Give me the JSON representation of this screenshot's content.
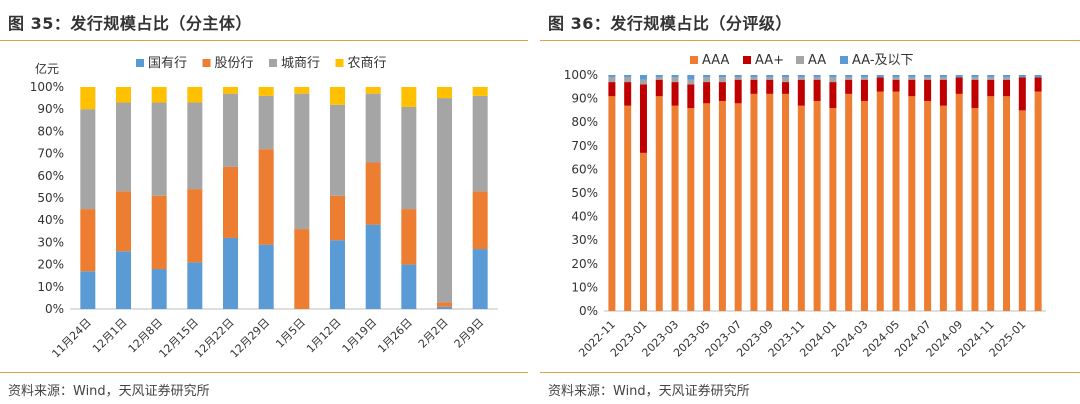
{
  "colors": {
    "guoyouhang": "#5b9bd5",
    "gufenhang": "#ed7d31",
    "chengshanghang": "#a5a5a5",
    "nongshanghang": "#ffc000",
    "AAA": "#ed7d31",
    "AAplus": "#c00000",
    "AA": "#a5a5a5",
    "AAminus": "#5b9bd5",
    "rule": "#d9a441"
  },
  "left": {
    "title": "图 35：发行规模占比（分主体）",
    "source": "资料来源：Wind，天风证券研究所"
  },
  "right": {
    "title": "图 36：发行规模占比（分评级）",
    "source": "资料来源：Wind，天风证券研究所"
  },
  "chart_data": [
    {
      "type": "bar",
      "stacked": true,
      "percent": true,
      "unit_label": "亿元",
      "yticks": [
        "0%",
        "10%",
        "20%",
        "30%",
        "40%",
        "50%",
        "60%",
        "70%",
        "80%",
        "90%",
        "100%"
      ],
      "ylim": [
        0,
        100
      ],
      "legend_position": "top",
      "categories": [
        "11月24日",
        "12月1日",
        "12月8日",
        "12月15日",
        "12月22日",
        "12月29日",
        "1月5日",
        "1月12日",
        "1月19日",
        "1月26日",
        "2月2日",
        "2月9日"
      ],
      "series": [
        {
          "name": "国有行",
          "color_key": "guoyouhang",
          "values": [
            17,
            26,
            18,
            21,
            32,
            29,
            0,
            31,
            38,
            20,
            1,
            27
          ]
        },
        {
          "name": "股份行",
          "color_key": "gufenhang",
          "values": [
            28,
            27,
            33,
            33,
            32,
            43,
            36,
            20,
            28,
            25,
            2,
            26
          ]
        },
        {
          "name": "城商行",
          "color_key": "chengshanghang",
          "values": [
            45,
            40,
            42,
            39,
            33,
            24,
            61,
            41,
            31,
            46,
            92,
            43
          ]
        },
        {
          "name": "农商行",
          "color_key": "nongshanghang",
          "values": [
            10,
            7,
            7,
            7,
            3,
            4,
            3,
            8,
            3,
            9,
            5,
            4
          ]
        }
      ]
    },
    {
      "type": "bar",
      "stacked": true,
      "percent": true,
      "yticks": [
        "0%",
        "10%",
        "20%",
        "30%",
        "40%",
        "50%",
        "60%",
        "70%",
        "80%",
        "90%",
        "100%"
      ],
      "ylim": [
        0,
        100
      ],
      "legend_position": "top",
      "categories": [
        "2022-11",
        "2022-12",
        "2023-01",
        "2023-02",
        "2023-03",
        "2023-04",
        "2023-05",
        "2023-06",
        "2023-07",
        "2023-08",
        "2023-09",
        "2023-10",
        "2023-11",
        "2023-12",
        "2024-01",
        "2024-02",
        "2024-03",
        "2024-04",
        "2024-05",
        "2024-06",
        "2024-07",
        "2024-08",
        "2024-09",
        "2024-10",
        "2024-11",
        "2024-12",
        "2025-01",
        "2025-02"
      ],
      "xtick_labels": [
        "2022-11",
        "2023-01",
        "2023-03",
        "2023-05",
        "2023-07",
        "2023-09",
        "2023-11",
        "2024-01",
        "2024-03",
        "2024-05",
        "2024-07",
        "2024-09",
        "2024-11",
        "2025-01"
      ],
      "series": [
        {
          "name": "AAA",
          "color_key": "AAA",
          "values": [
            91,
            87,
            67,
            91,
            87,
            86,
            88,
            89,
            88,
            92,
            92,
            92,
            87,
            89,
            86,
            92,
            89,
            93,
            93,
            91,
            89,
            87,
            92,
            86,
            91,
            91,
            85,
            93
          ]
        },
        {
          "name": "AA+",
          "color_key": "AAplus",
          "values": [
            6,
            10,
            29,
            7,
            10,
            10,
            9,
            8,
            10,
            6,
            6,
            5,
            11,
            9,
            11,
            6,
            9,
            6,
            5,
            7,
            9,
            11,
            7,
            12,
            7,
            7,
            14,
            6
          ]
        },
        {
          "name": "AA",
          "color_key": "AA",
          "values": [
            2,
            2,
            2,
            1,
            2,
            2,
            2,
            2,
            1,
            1,
            1,
            2,
            1,
            1,
            2,
            1,
            1,
            0,
            1,
            1,
            1,
            1,
            0,
            1,
            1,
            1,
            0,
            0
          ]
        },
        {
          "name": "AA-及以下",
          "color_key": "AAminus",
          "values": [
            1,
            1,
            2,
            1,
            1,
            2,
            1,
            1,
            1,
            1,
            1,
            1,
            1,
            1,
            1,
            1,
            1,
            1,
            1,
            1,
            1,
            1,
            1,
            1,
            1,
            1,
            1,
            1
          ]
        }
      ]
    }
  ]
}
